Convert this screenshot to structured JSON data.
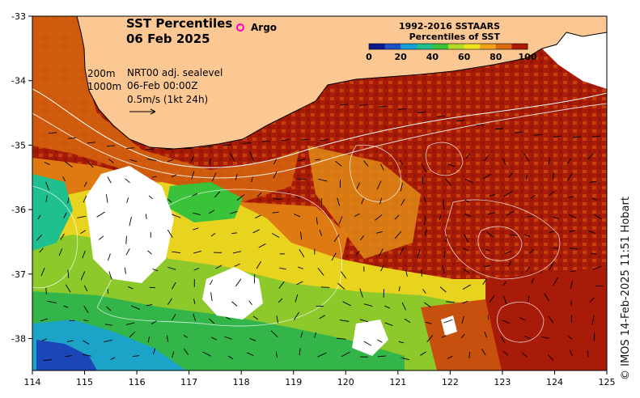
{
  "title": {
    "line1": "SST Percentiles",
    "line2": "06 Feb 2025"
  },
  "argo_label": "Argo",
  "colorbar": {
    "title1": "1992-2016 SSTAARS",
    "title2": "Percentiles of SST",
    "ticks": [
      "0",
      "20",
      "40",
      "60",
      "80",
      "100"
    ],
    "colors": [
      "#0b1a8c",
      "#1f4fc9",
      "#1aa0d8",
      "#1fbf8f",
      "#39c23a",
      "#b6d92a",
      "#f0e21e",
      "#f2a21a",
      "#d96a10",
      "#b01a05"
    ]
  },
  "contours_legend": {
    "c200": "200m",
    "c1000": "1000m"
  },
  "currents_legend": {
    "line1": "NRT00 adj. sealevel",
    "line2": "06-Feb 00:00Z",
    "line3": "0.5m/s (1kt 24h)"
  },
  "axes": {
    "x_ticks": [
      "114",
      "115",
      "116",
      "117",
      "118",
      "119",
      "120",
      "121",
      "122",
      "123",
      "124",
      "125"
    ],
    "y_ticks": [
      "-33",
      "-34",
      "-35",
      "-36",
      "-37",
      "-38"
    ],
    "lon_range": [
      114,
      125
    ],
    "lat_range": [
      -33,
      -38.5
    ]
  },
  "land_color": "#fbc894",
  "credit": "© IMOS 14-Feb-2025 11:51 Hobart"
}
